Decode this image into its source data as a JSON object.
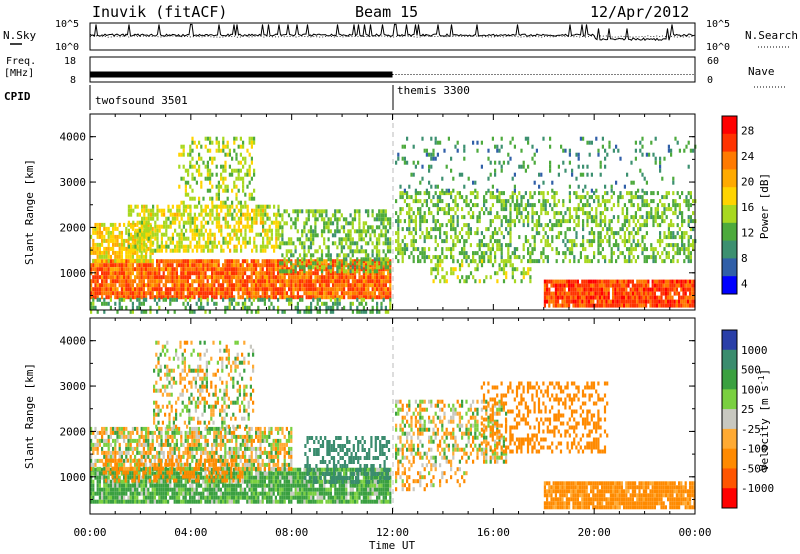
{
  "header": {
    "left_title": "Inuvik (fitACF)",
    "center_title": "Beam 15",
    "right_title": "12/Apr/2012"
  },
  "noise_panel": {
    "left_label": "N.Sky",
    "left_ticks": [
      "10^5",
      "10^0"
    ],
    "right_label": "N.Search",
    "right_ticks": [
      "10^5",
      "10^0"
    ],
    "right_linestyle": "dotted"
  },
  "freq_panel": {
    "left_label_1": "Freq.",
    "left_label_2": "[MHz]",
    "left_ticks": [
      "18",
      "8"
    ],
    "right_label": "Nave",
    "right_ticks": [
      "60",
      "0"
    ],
    "right_linestyle": "dotted"
  },
  "cpid_panel": {
    "label": "CPID",
    "modes": [
      {
        "name": "twofsound 3501",
        "start_hour": 0
      },
      {
        "name": "themis 3300",
        "start_hour": 12
      }
    ]
  },
  "x_axis": {
    "label": "Time UT",
    "ticks": [
      "00:00",
      "04:00",
      "08:00",
      "12:00",
      "16:00",
      "20:00",
      "00:00"
    ],
    "range_hours": [
      0,
      24
    ]
  },
  "y_axis": {
    "label": "Slant Range [km]",
    "ticks": [
      "1000",
      "2000",
      "3000",
      "4000"
    ],
    "range_km": [
      180,
      4500
    ]
  },
  "power_colorbar": {
    "label": "Power [dB]",
    "ticks": [
      "28",
      "24",
      "20",
      "16",
      "12",
      "8",
      "4"
    ],
    "colors": [
      "#ff0000",
      "#ff3300",
      "#ff7a00",
      "#ffaa00",
      "#ffd400",
      "#a8d820",
      "#4daa3c",
      "#3c9070",
      "#305fa8",
      "#0000ff"
    ]
  },
  "velocity_colorbar": {
    "label": "Velocity [m s",
    "label_superscript": "-1",
    "label_close": "]",
    "ticks": [
      "1000",
      "500",
      "100",
      "25",
      "-25",
      "-100",
      "-500",
      "-1000"
    ],
    "colors": [
      "#2a3fa8",
      "#3a8c6e",
      "#3aa040",
      "#7ad040",
      "#c8c8c0",
      "#ffaa33",
      "#ff8a00",
      "#ff5500",
      "#ff0000"
    ]
  },
  "chart_data": [
    {
      "type": "heatmap",
      "name": "power",
      "x_range_hours": [
        0,
        24
      ],
      "y_range_km": [
        180,
        4500
      ],
      "color_scale_db": [
        0,
        32
      ],
      "blobs": [
        {
          "t0": 0.0,
          "t1": 11.9,
          "r0": 450,
          "r1": 1300,
          "value_db": 26,
          "density": 0.92
        },
        {
          "t0": 0.0,
          "t1": 2.5,
          "r0": 1300,
          "r1": 2100,
          "value_db": 18,
          "density": 0.7
        },
        {
          "t0": 1.5,
          "t1": 7.5,
          "r0": 1500,
          "r1": 2500,
          "value_db": 16,
          "density": 0.6
        },
        {
          "t0": 3.5,
          "t1": 6.5,
          "r0": 2500,
          "r1": 4000,
          "value_db": 14,
          "density": 0.35
        },
        {
          "t0": 7.5,
          "t1": 11.9,
          "r0": 1000,
          "r1": 2400,
          "value_db": 12,
          "density": 0.5
        },
        {
          "t0": 0.0,
          "t1": 11.9,
          "r0": 180,
          "r1": 450,
          "value_db": 10,
          "density": 0.35
        },
        {
          "t0": 12.1,
          "t1": 24.0,
          "r0": 1300,
          "r1": 2800,
          "value_db": 12,
          "density": 0.45
        },
        {
          "t0": 13.5,
          "t1": 17.5,
          "r0": 800,
          "r1": 1300,
          "value_db": 14,
          "density": 0.35
        },
        {
          "t0": 18.0,
          "t1": 24.0,
          "r0": 300,
          "r1": 850,
          "value_db": 28,
          "density": 0.95
        },
        {
          "t0": 12.1,
          "t1": 24.0,
          "r0": 2800,
          "r1": 4000,
          "value_db": 8,
          "density": 0.12
        }
      ]
    },
    {
      "type": "heatmap",
      "name": "velocity",
      "x_range_hours": [
        0,
        24
      ],
      "y_range_km": [
        180,
        4500
      ],
      "color_scale_ms": [
        -1000,
        1000
      ],
      "blobs": [
        {
          "t0": 0.0,
          "t1": 11.9,
          "r0": 450,
          "r1": 1200,
          "value_ms": 150,
          "density": 0.9
        },
        {
          "t0": 0.0,
          "t1": 8.0,
          "r0": 1200,
          "r1": 2100,
          "value_ms": 0,
          "density": 0.7
        },
        {
          "t0": 2.5,
          "t1": 6.5,
          "r0": 2100,
          "r1": 4000,
          "value_ms": 0,
          "density": 0.35
        },
        {
          "t0": 0.5,
          "t1": 6.0,
          "r0": 900,
          "r1": 1400,
          "value_ms": -300,
          "density": 0.4
        },
        {
          "t0": 8.5,
          "t1": 11.9,
          "r0": 900,
          "r1": 1900,
          "value_ms": 700,
          "density": 0.45
        },
        {
          "t0": 12.1,
          "t1": 16.5,
          "r0": 1300,
          "r1": 2700,
          "value_ms": 0,
          "density": 0.45
        },
        {
          "t0": 15.5,
          "t1": 20.5,
          "r0": 1600,
          "r1": 3100,
          "value_ms": -300,
          "density": 0.35
        },
        {
          "t0": 18.0,
          "t1": 24.0,
          "r0": 300,
          "r1": 900,
          "value_ms": -200,
          "density": 0.9
        },
        {
          "t0": 12.1,
          "t1": 15.0,
          "r0": 700,
          "r1": 1300,
          "value_ms": -100,
          "density": 0.3
        }
      ]
    },
    {
      "type": "line",
      "name": "noise_sky",
      "x_range_hours": [
        0,
        24
      ],
      "description_level": "log scale 10^0 to 10^5",
      "baseline_level": 0.55,
      "spike_level": 0.95
    },
    {
      "type": "line",
      "name": "frequency",
      "x_range_hours": [
        0,
        24
      ],
      "segments": [
        {
          "t0": 0,
          "t1": 12,
          "value_mhz": 11,
          "style": "thick"
        },
        {
          "t0": 12,
          "t1": 24,
          "value_mhz": 11,
          "style": "dotted"
        }
      ],
      "ylim": [
        8,
        18
      ]
    }
  ]
}
